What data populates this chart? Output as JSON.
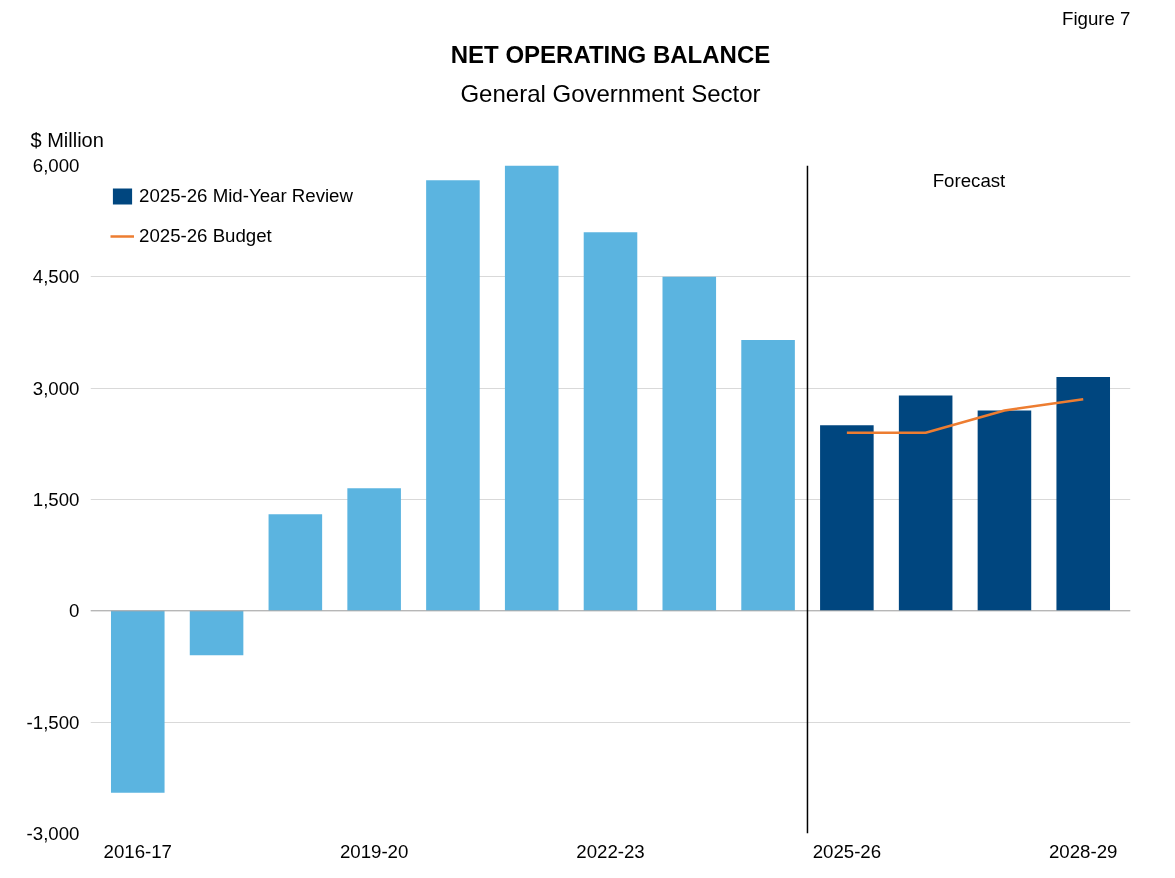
{
  "chart_data": {
    "type": "bar",
    "title": "NET OPERATING BALANCE",
    "subtitle": "General Government Sector",
    "ylabel": "$ Million",
    "annotations": [
      "Figure 7",
      "Forecast"
    ],
    "categories": [
      "2016-17",
      null,
      null,
      "2019-20",
      null,
      null,
      "2022-23",
      null,
      null,
      "2025-26",
      null,
      null,
      "2028-29"
    ],
    "series": [
      {
        "name": "2025-26 Mid-Year Review",
        "color": "#00467f",
        "values": [
          -2450,
          -600,
          1300,
          1650,
          5800,
          6000,
          5100,
          4500,
          3650,
          2500,
          2900,
          2700,
          3150
        ],
        "colors": [
          "#5bb4e0",
          "#5bb4e0",
          "#5bb4e0",
          "#5bb4e0",
          "#5bb4e0",
          "#5bb4e0",
          "#5bb4e0",
          "#5bb4e0",
          "#5bb4e0",
          "#00467f",
          "#00467f",
          "#00467f",
          "#00467f"
        ]
      },
      {
        "name": "2025-26 Budget",
        "type": "line",
        "color": "#ed7d31",
        "values": [
          null,
          null,
          null,
          null,
          null,
          null,
          null,
          null,
          null,
          2400,
          2400,
          2700,
          2850
        ]
      }
    ],
    "ylim": [
      -3000,
      6000
    ],
    "yticks": [
      {
        "value": -3000,
        "label": "-3,000"
      },
      {
        "value": -1500,
        "label": "-1,500"
      },
      0,
      {
        "value": 1500,
        "label": "1,500"
      },
      {
        "value": 3000,
        "label": "3,000"
      },
      {
        "value": 4500,
        "label": "4,500"
      },
      {
        "value": 6000,
        "label": "6,000"
      }
    ],
    "grid": "y",
    "legend": "top left"
  }
}
